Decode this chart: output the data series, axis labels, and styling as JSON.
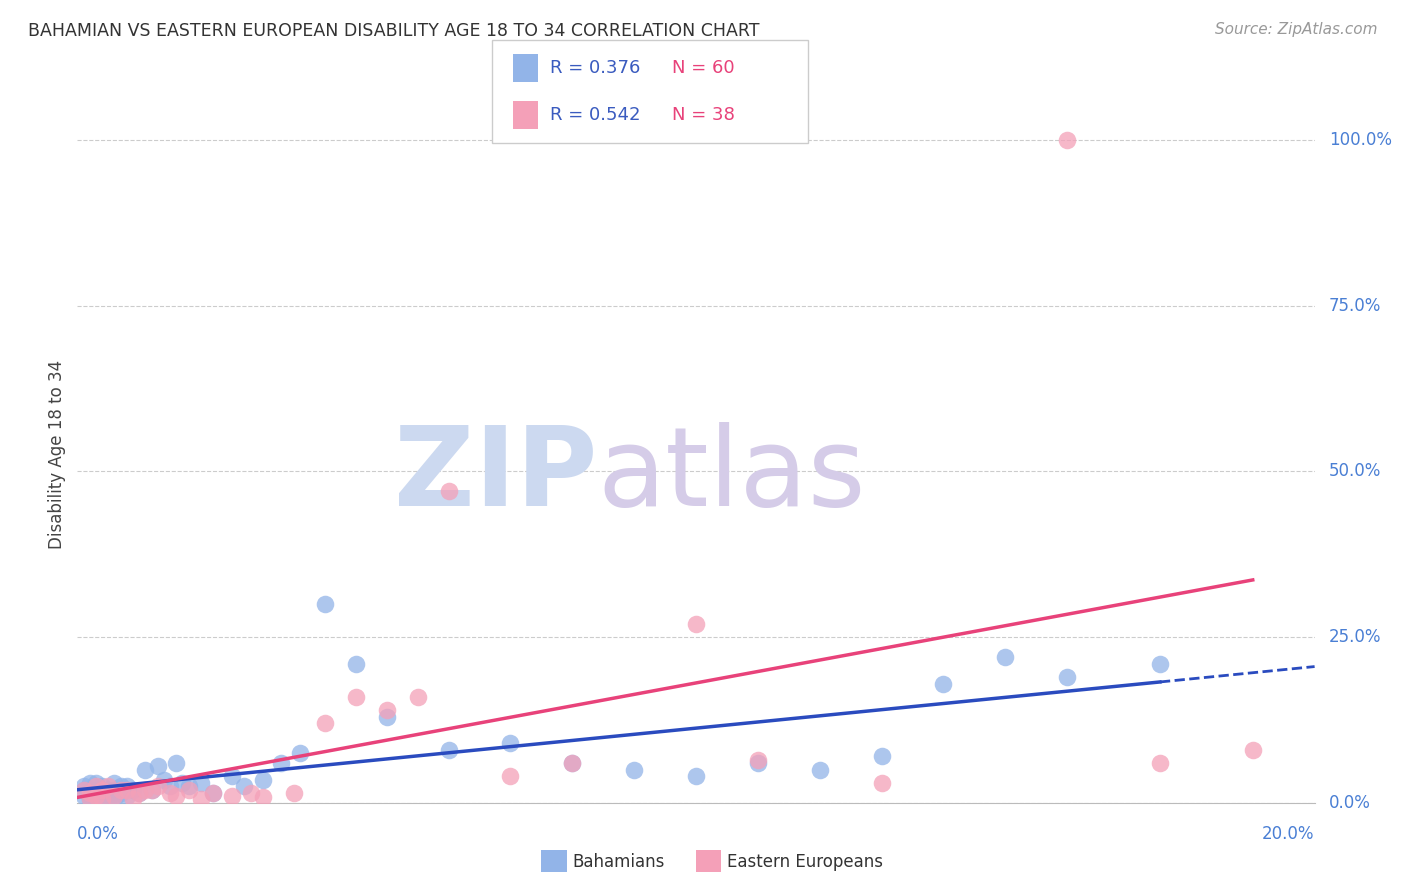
{
  "title": "BAHAMIAN VS EASTERN EUROPEAN DISABILITY AGE 18 TO 34 CORRELATION CHART",
  "source": "Source: ZipAtlas.com",
  "ylabel": "Disability Age 18 to 34",
  "ytick_labels": [
    "0.0%",
    "25.0%",
    "50.0%",
    "75.0%",
    "100.0%"
  ],
  "ytick_values": [
    0.0,
    0.25,
    0.5,
    0.75,
    1.0
  ],
  "xlim": [
    0.0,
    0.2
  ],
  "ylim": [
    0.0,
    1.05
  ],
  "bahamian_color": "#92b4e8",
  "eastern_color": "#f4a0b8",
  "bahamian_line_color": "#2a4bbf",
  "eastern_line_color": "#e8427a",
  "watermark_zip_color": "#ccd9f0",
  "watermark_atlas_color": "#d5cce8",
  "grid_color": "#cccccc",
  "background_color": "#ffffff",
  "legend_R_bahamian": "R = 0.376",
  "legend_N_bahamian": "N = 60",
  "legend_R_eastern": "R = 0.542",
  "legend_N_eastern": "N = 38",
  "bahamian_scatter_x": [
    0.001,
    0.001,
    0.001,
    0.002,
    0.002,
    0.002,
    0.002,
    0.002,
    0.003,
    0.003,
    0.003,
    0.003,
    0.003,
    0.004,
    0.004,
    0.004,
    0.004,
    0.005,
    0.005,
    0.005,
    0.006,
    0.006,
    0.006,
    0.006,
    0.007,
    0.007,
    0.008,
    0.008,
    0.009,
    0.01,
    0.011,
    0.012,
    0.013,
    0.014,
    0.015,
    0.016,
    0.017,
    0.018,
    0.02,
    0.022,
    0.025,
    0.027,
    0.03,
    0.033,
    0.036,
    0.04,
    0.045,
    0.05,
    0.06,
    0.07,
    0.08,
    0.09,
    0.1,
    0.11,
    0.12,
    0.13,
    0.14,
    0.15,
    0.16,
    0.175
  ],
  "bahamian_scatter_y": [
    0.01,
    0.02,
    0.025,
    0.005,
    0.01,
    0.02,
    0.03,
    0.015,
    0.005,
    0.01,
    0.015,
    0.02,
    0.03,
    0.005,
    0.01,
    0.02,
    0.025,
    0.005,
    0.01,
    0.02,
    0.005,
    0.01,
    0.02,
    0.03,
    0.015,
    0.025,
    0.01,
    0.025,
    0.02,
    0.015,
    0.05,
    0.02,
    0.055,
    0.035,
    0.025,
    0.06,
    0.03,
    0.025,
    0.03,
    0.015,
    0.04,
    0.025,
    0.035,
    0.06,
    0.075,
    0.3,
    0.21,
    0.13,
    0.08,
    0.09,
    0.06,
    0.05,
    0.04,
    0.06,
    0.05,
    0.07,
    0.18,
    0.22,
    0.19,
    0.21
  ],
  "eastern_scatter_x": [
    0.001,
    0.002,
    0.002,
    0.003,
    0.003,
    0.004,
    0.004,
    0.005,
    0.006,
    0.007,
    0.008,
    0.009,
    0.01,
    0.011,
    0.012,
    0.013,
    0.015,
    0.016,
    0.018,
    0.02,
    0.022,
    0.025,
    0.028,
    0.03,
    0.035,
    0.04,
    0.045,
    0.05,
    0.055,
    0.06,
    0.07,
    0.08,
    0.1,
    0.11,
    0.13,
    0.16,
    0.175,
    0.19
  ],
  "eastern_scatter_y": [
    0.02,
    0.005,
    0.015,
    0.01,
    0.025,
    0.005,
    0.02,
    0.025,
    0.01,
    0.02,
    0.02,
    0.005,
    0.015,
    0.02,
    0.02,
    0.025,
    0.015,
    0.01,
    0.02,
    0.005,
    0.015,
    0.01,
    0.015,
    0.008,
    0.015,
    0.12,
    0.16,
    0.14,
    0.16,
    0.47,
    0.04,
    0.06,
    0.27,
    0.065,
    0.03,
    1.0,
    0.06,
    0.08
  ]
}
